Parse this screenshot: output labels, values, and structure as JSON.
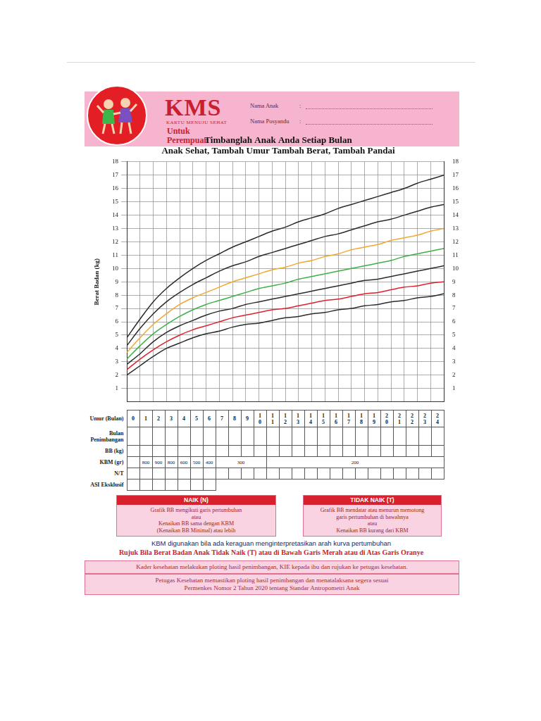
{
  "header": {
    "logo": "KMS",
    "logo_subtitle": "KARTU MENUJU SEHAT",
    "for": [
      "Untuk",
      "Perempuan"
    ],
    "fields": [
      {
        "label": "Nama Anak",
        "separator": ":"
      },
      {
        "label": "Nama Posyandu",
        "separator": ":"
      }
    ]
  },
  "chart_data": {
    "type": "line",
    "title": [
      "Timbanglah Anak Anda Setiap Bulan",
      "Anak Sehat, Tambah Umur Tambah Berat, Tambah Pandai"
    ],
    "y_label": "Berat Badan (kg)",
    "x": [
      0,
      1,
      2,
      3,
      4,
      5,
      6,
      7,
      8,
      9,
      10,
      11,
      12,
      13,
      14,
      15,
      16,
      17,
      18,
      19,
      20,
      21,
      22,
      23,
      24
    ],
    "series": [
      {
        "color": "#2b2b2b",
        "values": [
          2.0,
          2.7,
          3.4,
          4.0,
          4.4,
          4.8,
          5.1,
          5.3,
          5.6,
          5.8,
          5.9,
          6.1,
          6.3,
          6.4,
          6.6,
          6.7,
          6.9,
          7.0,
          7.2,
          7.3,
          7.5,
          7.6,
          7.8,
          7.9,
          8.1
        ]
      },
      {
        "color": "#e0202a",
        "values": [
          2.4,
          3.2,
          3.9,
          4.5,
          5.0,
          5.4,
          5.7,
          6.0,
          6.3,
          6.5,
          6.7,
          6.9,
          7.0,
          7.2,
          7.4,
          7.6,
          7.7,
          7.9,
          8.1,
          8.2,
          8.4,
          8.6,
          8.7,
          8.9,
          9.0
        ]
      },
      {
        "color": "#2b2b2b",
        "values": [
          2.8,
          3.6,
          4.5,
          5.2,
          5.7,
          6.1,
          6.5,
          6.8,
          7.0,
          7.3,
          7.5,
          7.7,
          7.9,
          8.1,
          8.3,
          8.5,
          8.7,
          8.9,
          9.1,
          9.2,
          9.4,
          9.6,
          9.8,
          10.0,
          10.2
        ]
      },
      {
        "color": "#3cb043",
        "values": [
          3.2,
          4.2,
          5.1,
          5.8,
          6.4,
          6.9,
          7.3,
          7.6,
          7.9,
          8.2,
          8.5,
          8.7,
          8.9,
          9.2,
          9.4,
          9.6,
          9.8,
          10.0,
          10.2,
          10.4,
          10.6,
          10.9,
          11.1,
          11.3,
          11.5
        ]
      },
      {
        "color": "#f0a830",
        "values": [
          3.7,
          4.8,
          5.8,
          6.6,
          7.3,
          7.8,
          8.2,
          8.6,
          9.0,
          9.3,
          9.6,
          9.9,
          10.1,
          10.4,
          10.6,
          10.9,
          11.1,
          11.4,
          11.6,
          11.8,
          12.1,
          12.3,
          12.5,
          12.8,
          13.0
        ]
      },
      {
        "color": "#2b2b2b",
        "values": [
          4.2,
          5.5,
          6.6,
          7.5,
          8.2,
          8.8,
          9.3,
          9.8,
          10.2,
          10.5,
          10.9,
          11.2,
          11.5,
          11.8,
          12.1,
          12.4,
          12.6,
          12.9,
          13.2,
          13.5,
          13.7,
          14.0,
          14.3,
          14.6,
          14.8
        ]
      },
      {
        "color": "#2b2b2b",
        "values": [
          4.8,
          6.2,
          7.5,
          8.5,
          9.3,
          10.0,
          10.6,
          11.1,
          11.6,
          12.0,
          12.4,
          12.8,
          13.1,
          13.5,
          13.8,
          14.1,
          14.5,
          14.8,
          15.1,
          15.4,
          15.7,
          16.0,
          16.4,
          16.7,
          17.0
        ]
      }
    ],
    "xlim": [
      0,
      24
    ],
    "xticks": [
      0,
      1,
      2,
      3,
      4,
      5,
      6,
      7,
      8,
      9,
      10,
      11,
      12,
      13,
      14,
      15,
      16,
      17,
      18,
      19,
      20,
      21,
      22,
      23,
      24
    ],
    "ylim": [
      0,
      18
    ],
    "yticks": [
      1,
      2,
      3,
      4,
      5,
      6,
      7,
      8,
      9,
      10,
      11,
      12,
      13,
      14,
      15,
      16,
      17,
      18
    ],
    "y2lim": [
      0,
      18
    ],
    "y2ticks": [
      1,
      2,
      3,
      4,
      5,
      6,
      7,
      8,
      9,
      10,
      11,
      12,
      13,
      14,
      15,
      16,
      17,
      18
    ],
    "grid": true,
    "tick_labels": "y",
    "marker": "none",
    "line_style": "solid"
  },
  "table": {
    "age_label": "Umur (Bulan)",
    "ages": [
      0,
      1,
      2,
      3,
      4,
      5,
      6,
      7,
      8,
      9,
      10,
      11,
      12,
      13,
      14,
      15,
      16,
      17,
      18,
      19,
      20,
      21,
      22,
      23,
      24
    ],
    "empty_rows": [
      "Bulan Penimbangan",
      "BB (kg)"
    ],
    "kbm_label": "KBM (gr)",
    "kbm": [
      {
        "from": 1,
        "to": 1,
        "value": 800
      },
      {
        "from": 2,
        "to": 2,
        "value": 900
      },
      {
        "from": 3,
        "to": 3,
        "value": 800
      },
      {
        "from": 4,
        "to": 4,
        "value": 600
      },
      {
        "from": 5,
        "to": 5,
        "value": 500
      },
      {
        "from": 6,
        "to": 6,
        "value": 400
      },
      {
        "from": 7,
        "to": 10,
        "value": 300
      },
      {
        "from": 11,
        "to": 24,
        "value": 200
      }
    ],
    "nt_label": "N/T",
    "asi_label": "ASI Eksklusif"
  },
  "status_boxes": [
    {
      "title": "NAIK (N)",
      "lines": [
        "Grafik BB mengikuti garis pertumbuhan",
        "atau",
        "Kenaikan BB sama dengan KBM",
        "(Kenaikan BB Minimal) atau lebih"
      ]
    },
    {
      "title": "TIDAK NAIK (T)",
      "lines": [
        "Grafik BB mendatar atau menurun memotong",
        "garis pertumbuhan di bawahnya",
        "atau",
        "Kenaikan BB kurang dari KBM"
      ]
    }
  ],
  "notes": [
    "KBM digunakan bila ada keraguan menginterpretasikan arah kurva pertumbuhan",
    "Rujuk Bila Berat Badan Anak Tidak Naik (T) atau di Bawah Garis Merah atau di Atas Garis Oranye"
  ],
  "footer_boxes": [
    [
      "Kader kesehatan melakukan ploting hasil penimbangan, KIE kepada ibu dan rujukan ke petugas kesehatan."
    ],
    [
      "Petugas Kesehatan memastikan ploting hasil penimbangan dan menatalaksana segera sesuai",
      "Permenkes Nomor 2 Tahun 2020 tentang Standar Antropometri Anak"
    ]
  ]
}
